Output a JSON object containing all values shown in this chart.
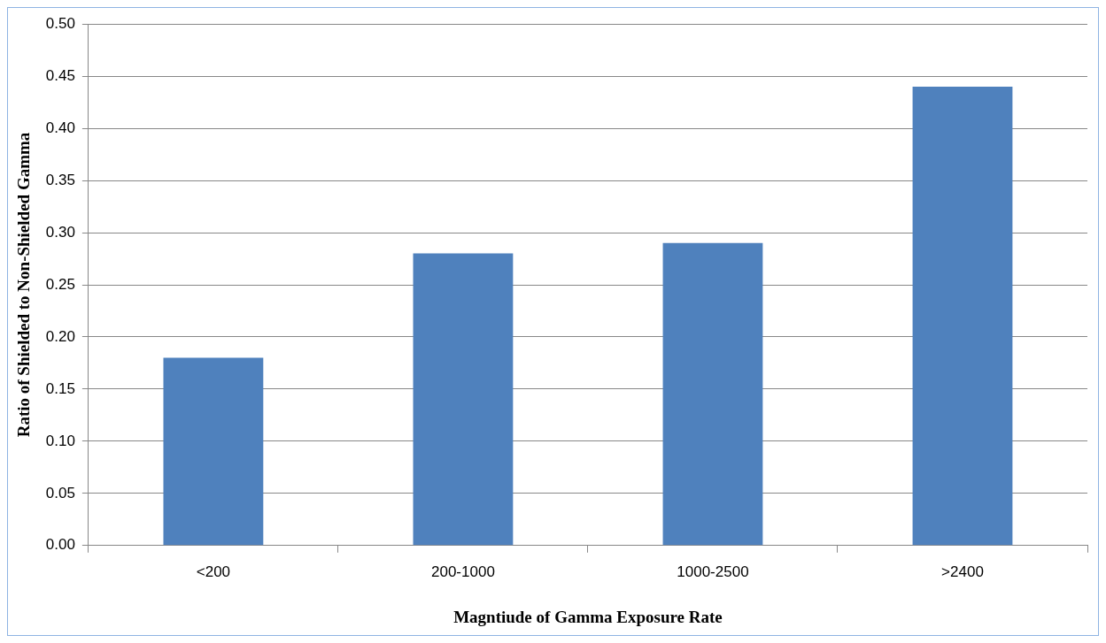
{
  "chart_data": {
    "type": "bar",
    "xlabel": "Magntiude of Gamma Exposure Rate",
    "ylabel": "Ratio of Shielded to Non-Shielded Gamma",
    "categories": [
      "<200",
      "200-1000",
      "1000-2500",
      ">2400"
    ],
    "values": [
      0.18,
      0.28,
      0.29,
      0.44
    ],
    "color": "#4f81bd",
    "ylim": [
      0,
      0.5
    ],
    "yticks": [
      {
        "value": 0,
        "label": "0.00"
      },
      {
        "value": 0.05,
        "label": "0.05"
      },
      {
        "value": 0.1,
        "label": "0.10"
      },
      {
        "value": 0.15,
        "label": "0.15"
      },
      {
        "value": 0.2,
        "label": "0.20"
      },
      {
        "value": 0.25,
        "label": "0.25"
      },
      {
        "value": 0.3,
        "label": "0.30"
      },
      {
        "value": 0.35,
        "label": "0.35"
      },
      {
        "value": 0.4,
        "label": "0.40"
      },
      {
        "value": 0.45,
        "label": "0.45"
      },
      {
        "value": 0.5,
        "label": "0.50"
      }
    ],
    "grid": "y",
    "legend": false
  }
}
